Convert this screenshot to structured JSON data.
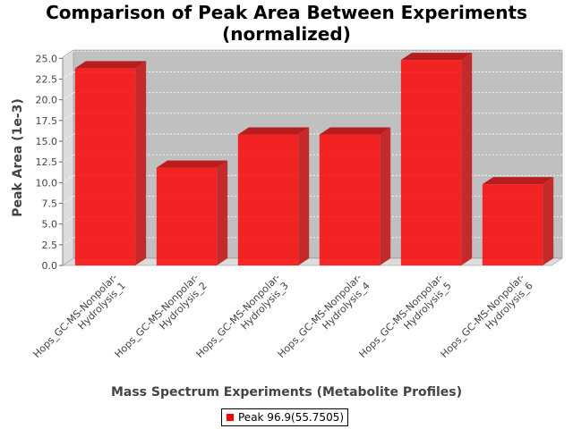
{
  "chart_data": {
    "type": "bar",
    "title_lines": [
      "Comparison of Peak Area Between Experiments",
      "(normalized)"
    ],
    "xlabel": "Mass Spectrum Experiments (Metabolite Profiles)",
    "ylabel": "Peak Area (1e-3)",
    "categories": [
      [
        "Hops_GC-MS-Nonpolar-",
        "Hydrolysis_1"
      ],
      [
        "Hops_GC-MS-Nonpolar-",
        "Hydrolysis_2"
      ],
      [
        "Hops_GC-MS-Nonpolar-",
        "Hydrolysis_3"
      ],
      [
        "Hops_GC-MS-Nonpolar-",
        "Hydrolysis_4"
      ],
      [
        "Hops_GC-MS-Nonpolar-",
        "Hydrolysis_5"
      ],
      [
        "Hops_GC-MS-Nonpolar-",
        "Hydrolysis_6"
      ]
    ],
    "series": [
      {
        "name": "Peak 96.9(55.7505)",
        "values": [
          23.8,
          11.8,
          15.8,
          15.8,
          24.8,
          9.8
        ],
        "color": "#ff0000"
      }
    ],
    "ylim": [
      0,
      26
    ],
    "yticks": [
      "0.0",
      "2.5",
      "5.0",
      "7.5",
      "10.0",
      "12.5",
      "15.0",
      "17.5",
      "20.0",
      "22.5",
      "25.0"
    ],
    "grid": true,
    "legend_position": "bottom"
  }
}
